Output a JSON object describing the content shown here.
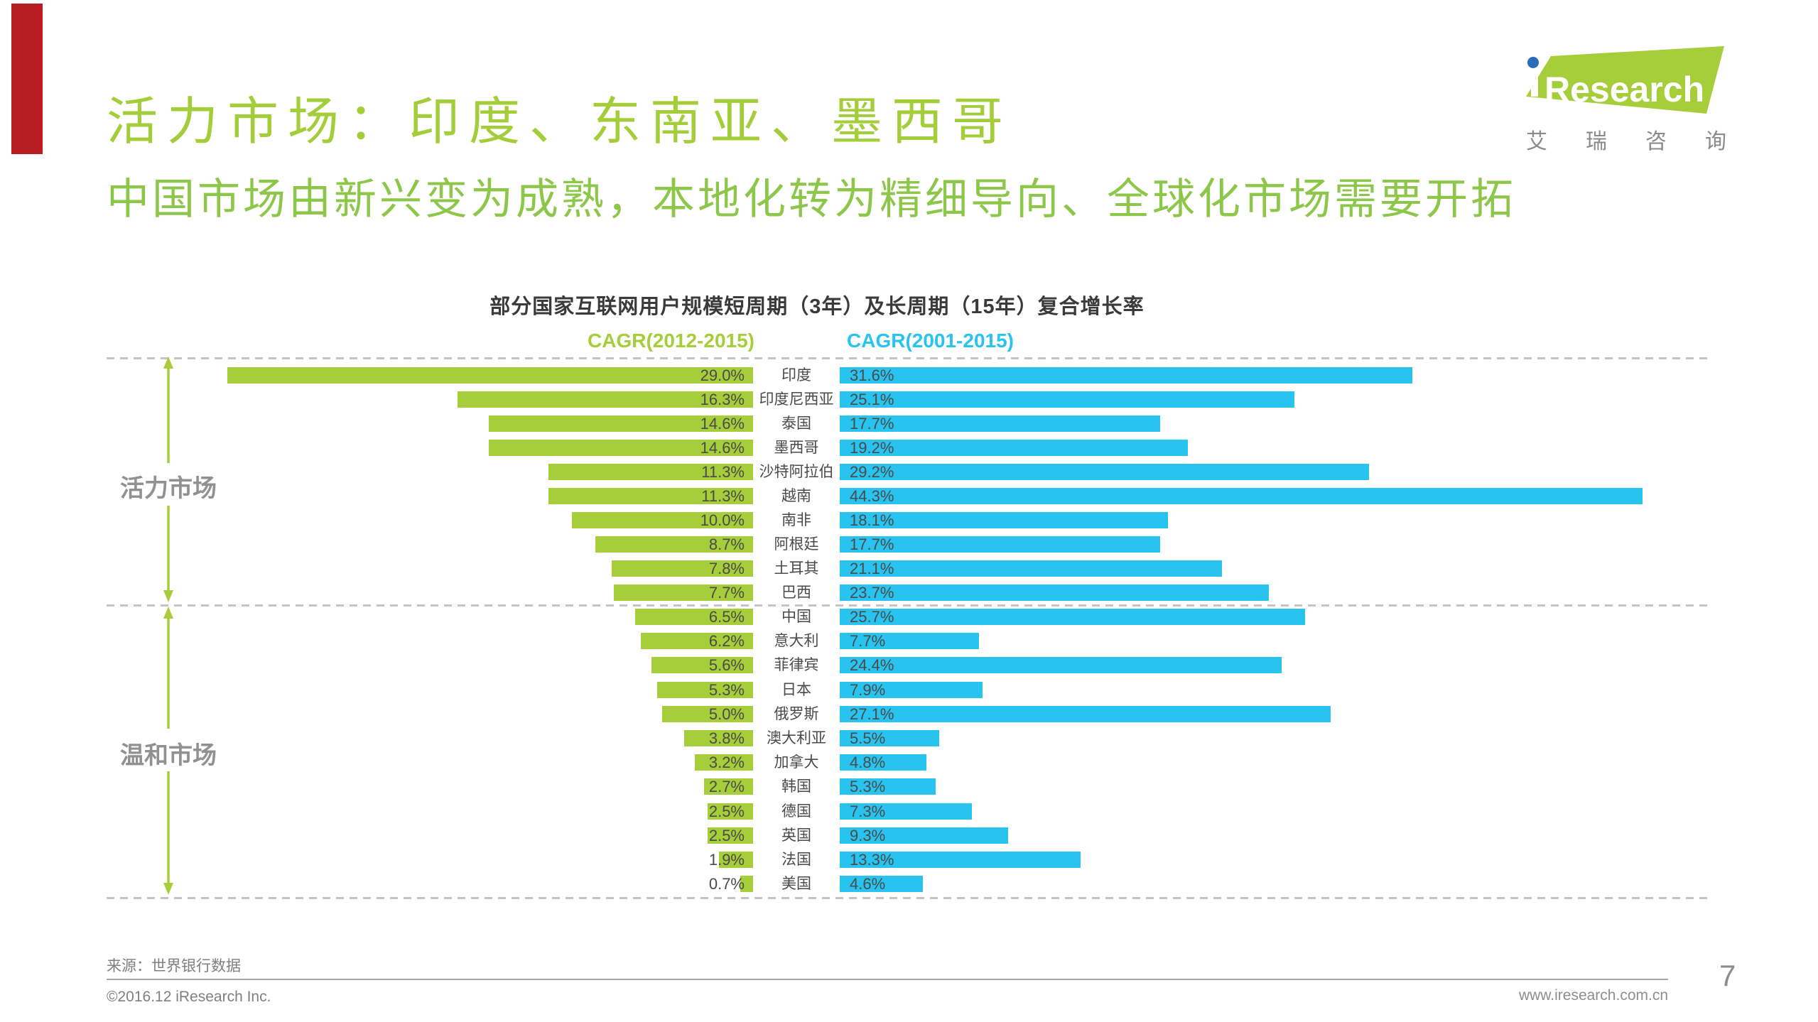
{
  "slide": {
    "title": "活力市场：印度、东南亚、墨西哥",
    "subtitle": "中国市场由新兴变为成熟，本地化转为精细导向、全球化市场需要开拓"
  },
  "logo": {
    "brand": "iResearch",
    "brand_text": "Research",
    "brand_cn": [
      "艾",
      "瑞",
      "咨",
      "询"
    ]
  },
  "colors": {
    "accent_green": "#A5CE3A",
    "accent_blue": "#29C3EF",
    "ribbon_red": "#B81D24",
    "value_text": "#4A4A4A",
    "group_label_gray": "#919191"
  },
  "chart_data": {
    "type": "bar",
    "orientation": "horizontal-diverging",
    "title": "部分国家互联网用户规模短周期（3年）及长周期（15年）复合增长率",
    "unit": "%",
    "xlim": [
      0,
      45
    ],
    "grid": "off",
    "categories": [
      "印度",
      "印度尼西亚",
      "泰国",
      "墨西哥",
      "沙特阿拉伯",
      "越南",
      "南非",
      "阿根廷",
      "土耳其",
      "巴西",
      "中国",
      "意大利",
      "菲律宾",
      "日本",
      "俄罗斯",
      "澳大利亚",
      "加拿大",
      "韩国",
      "德国",
      "英国",
      "法国",
      "美国"
    ],
    "series": [
      {
        "name": "CAGR(2012-2015)",
        "color": "#A5CE3A",
        "side": "left",
        "values": [
          29.0,
          16.3,
          14.6,
          14.6,
          11.3,
          11.3,
          10.0,
          8.7,
          7.8,
          7.7,
          6.5,
          6.2,
          5.6,
          5.3,
          5.0,
          3.8,
          3.2,
          2.7,
          2.5,
          2.5,
          1.9,
          0.7
        ]
      },
      {
        "name": "CAGR(2001-2015)",
        "color": "#29C3EF",
        "side": "right",
        "values": [
          31.6,
          25.1,
          17.7,
          19.2,
          29.2,
          44.3,
          18.1,
          17.7,
          21.1,
          23.7,
          25.7,
          7.7,
          24.4,
          7.9,
          27.1,
          5.5,
          4.8,
          5.3,
          7.3,
          9.3,
          13.3,
          4.6
        ]
      }
    ],
    "groups": [
      {
        "label": "活力市场",
        "start": 0,
        "end": 9
      },
      {
        "label": "温和市场",
        "start": 10,
        "end": 21
      }
    ]
  },
  "footer": {
    "source": "来源：世界银行数据",
    "copyright": "©2016.12 iResearch Inc.",
    "website": "www.iresearch.com.cn",
    "page": "7"
  }
}
